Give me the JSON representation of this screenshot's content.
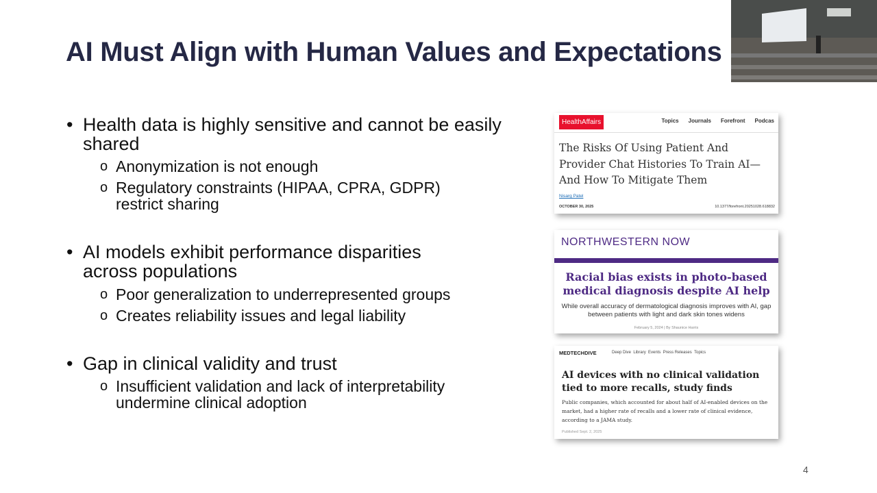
{
  "slide": {
    "title": "AI Must Align with Human Values and Expectations",
    "bullets": [
      {
        "text": "Health data is highly sensitive and cannot be easily shared",
        "sub": [
          "Anonymization is not enough",
          "Regulatory constraints (HIPAA, CPRA, GDPR) restrict sharing"
        ]
      },
      {
        "text": "AI models exhibit performance disparities across populations",
        "sub": [
          "Poor generalization to underrepresented groups",
          "Creates reliability issues and legal liability"
        ]
      },
      {
        "text": "Gap in clinical validity and trust",
        "sub": [
          "Insufficient validation and lack of interpretability undermine clinical adoption"
        ]
      }
    ],
    "page_number": "4"
  },
  "articles": [
    {
      "logo": "HealthAffairs",
      "nav": [
        "Topics",
        "Journals",
        "Forefront",
        "Podcas"
      ],
      "headline": "The Risks Of Using Patient And Provider Chat Histories To Train AI—And How To Mitigate Them",
      "author": "Nisarg Patel",
      "date": "OCTOBER 30, 2025",
      "doi": "10.1377/forefront.20251028.618832"
    },
    {
      "logo": "NORTHWESTERN NOW",
      "headline": "Racial bias exists in photo-based medical diagnosis despite AI help",
      "summary": "While overall accuracy of dermatological diagnosis improves with AI, gap between patients with light and dark skin tones widens",
      "byline": "February 5, 2024 | By Shaunice Harris"
    },
    {
      "logo": "MEDTECHDIVE",
      "nav": [
        "Deep Dive",
        "Library",
        "Events",
        "Press Releases",
        "Topics"
      ],
      "headline": "AI devices with no clinical validation tied to more recalls, study finds",
      "summary": "Public companies, which accounted for about half of AI-enabled devices on the market, had a higher rate of recalls and a lower rate of clinical evidence, according to a JAMA study.",
      "date": "Published Sept. 2, 2025"
    }
  ]
}
